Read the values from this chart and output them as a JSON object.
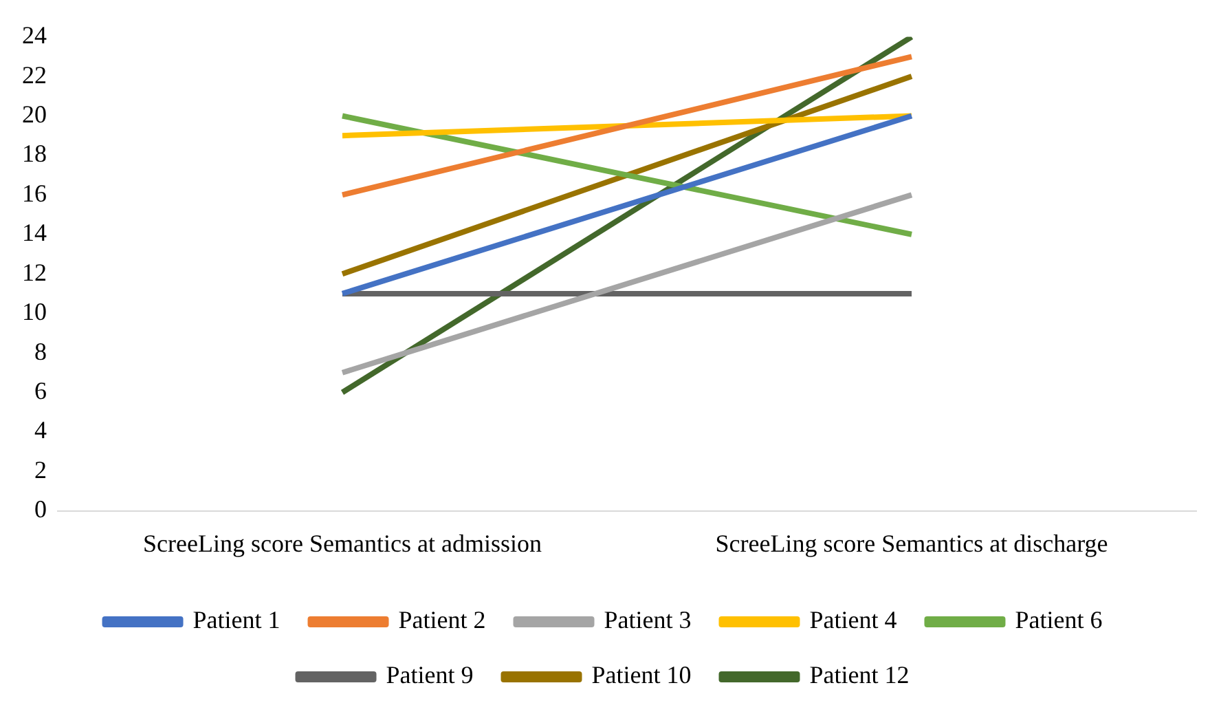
{
  "chart_data": {
    "type": "line",
    "categories": [
      "ScreeLing score Semantics at admission",
      "ScreeLing score Semantics at discharge"
    ],
    "series": [
      {
        "name": "Patient 1",
        "color": "#4472c4",
        "values": [
          11,
          20
        ]
      },
      {
        "name": "Patient 2",
        "color": "#ed7d31",
        "values": [
          16,
          23
        ]
      },
      {
        "name": "Patient 3",
        "color": "#a5a5a5",
        "values": [
          7,
          16
        ]
      },
      {
        "name": "Patient 4",
        "color": "#ffc000",
        "values": [
          19,
          20
        ]
      },
      {
        "name": "Patient 6",
        "color": "#70ad47",
        "values": [
          20,
          14
        ]
      },
      {
        "name": "Patient 9",
        "color": "#636363",
        "values": [
          11,
          11
        ]
      },
      {
        "name": "Patient 10",
        "color": "#997300",
        "values": [
          12,
          22
        ]
      },
      {
        "name": "Patient 12",
        "color": "#43682b",
        "values": [
          6,
          24
        ]
      }
    ],
    "ylim": [
      0,
      24
    ],
    "yticks": [
      0,
      2,
      4,
      6,
      8,
      10,
      12,
      14,
      16,
      18,
      20,
      22,
      24
    ],
    "grid": false,
    "legend": "bottom",
    "marker": "none",
    "line_style": "solid"
  }
}
